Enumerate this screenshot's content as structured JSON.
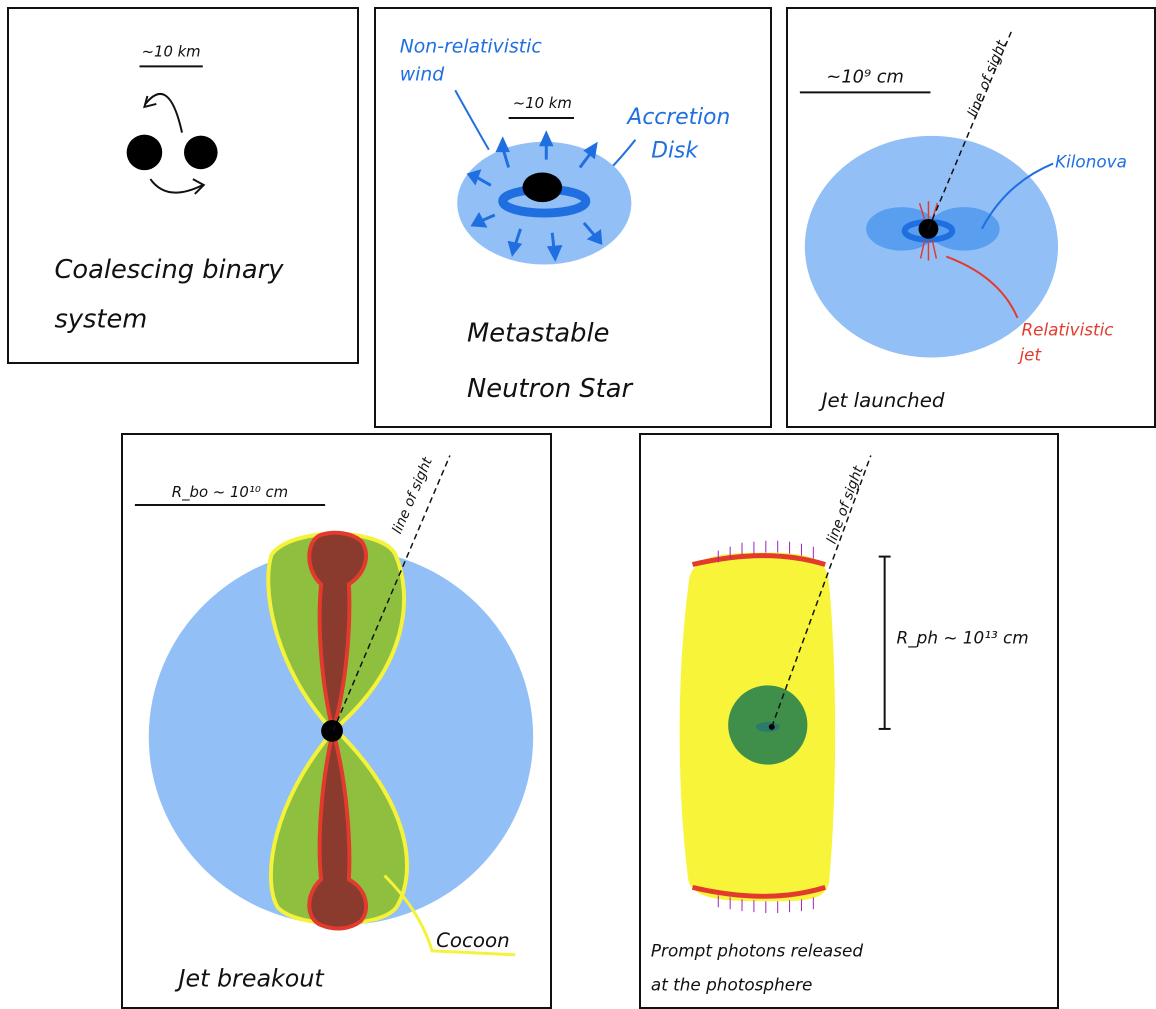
{
  "panels": [
    {
      "scale_label": "~10 km",
      "caption_line1": "Coalescing binary",
      "caption_line2": "system"
    },
    {
      "wind_label_line1": "Non-relativistic",
      "wind_label_line2": "wind",
      "scale_label": "~10 km",
      "disk_label_line1": "Accretion",
      "disk_label_line2": "Disk",
      "caption_line1": "Metastable",
      "caption_line2": "Neutron Star"
    },
    {
      "scale_label": "~10⁹ cm",
      "line_of_sight": "line of sight",
      "kilonova_label": "Kilonova",
      "jet_label_line1": "Relativistic",
      "jet_label_line2": "jet",
      "caption": "Jet launched"
    },
    {
      "scale_label": "R_bo ~ 10¹⁰ cm",
      "line_of_sight": "line of sight",
      "cocoon_label": "Cocoon",
      "caption": "Jet breakout"
    },
    {
      "line_of_sight": "line of sight",
      "radius_label": "R_ph ~  10¹³ cm",
      "caption_line1": "Prompt photons released",
      "caption_line2": "at the photosphere"
    }
  ],
  "colors": {
    "kilonova_blue": "#93bff7",
    "disk_blue": "#1f6fe0",
    "jet_red": "#e23b2e",
    "jet_brown": "#8b3a2e",
    "cocoon_green": "#8fbf3f",
    "cocoon_yellow": "#f4f23a",
    "photosphere_yellow": "#f8f43a",
    "core_green": "#3f8f4a"
  }
}
